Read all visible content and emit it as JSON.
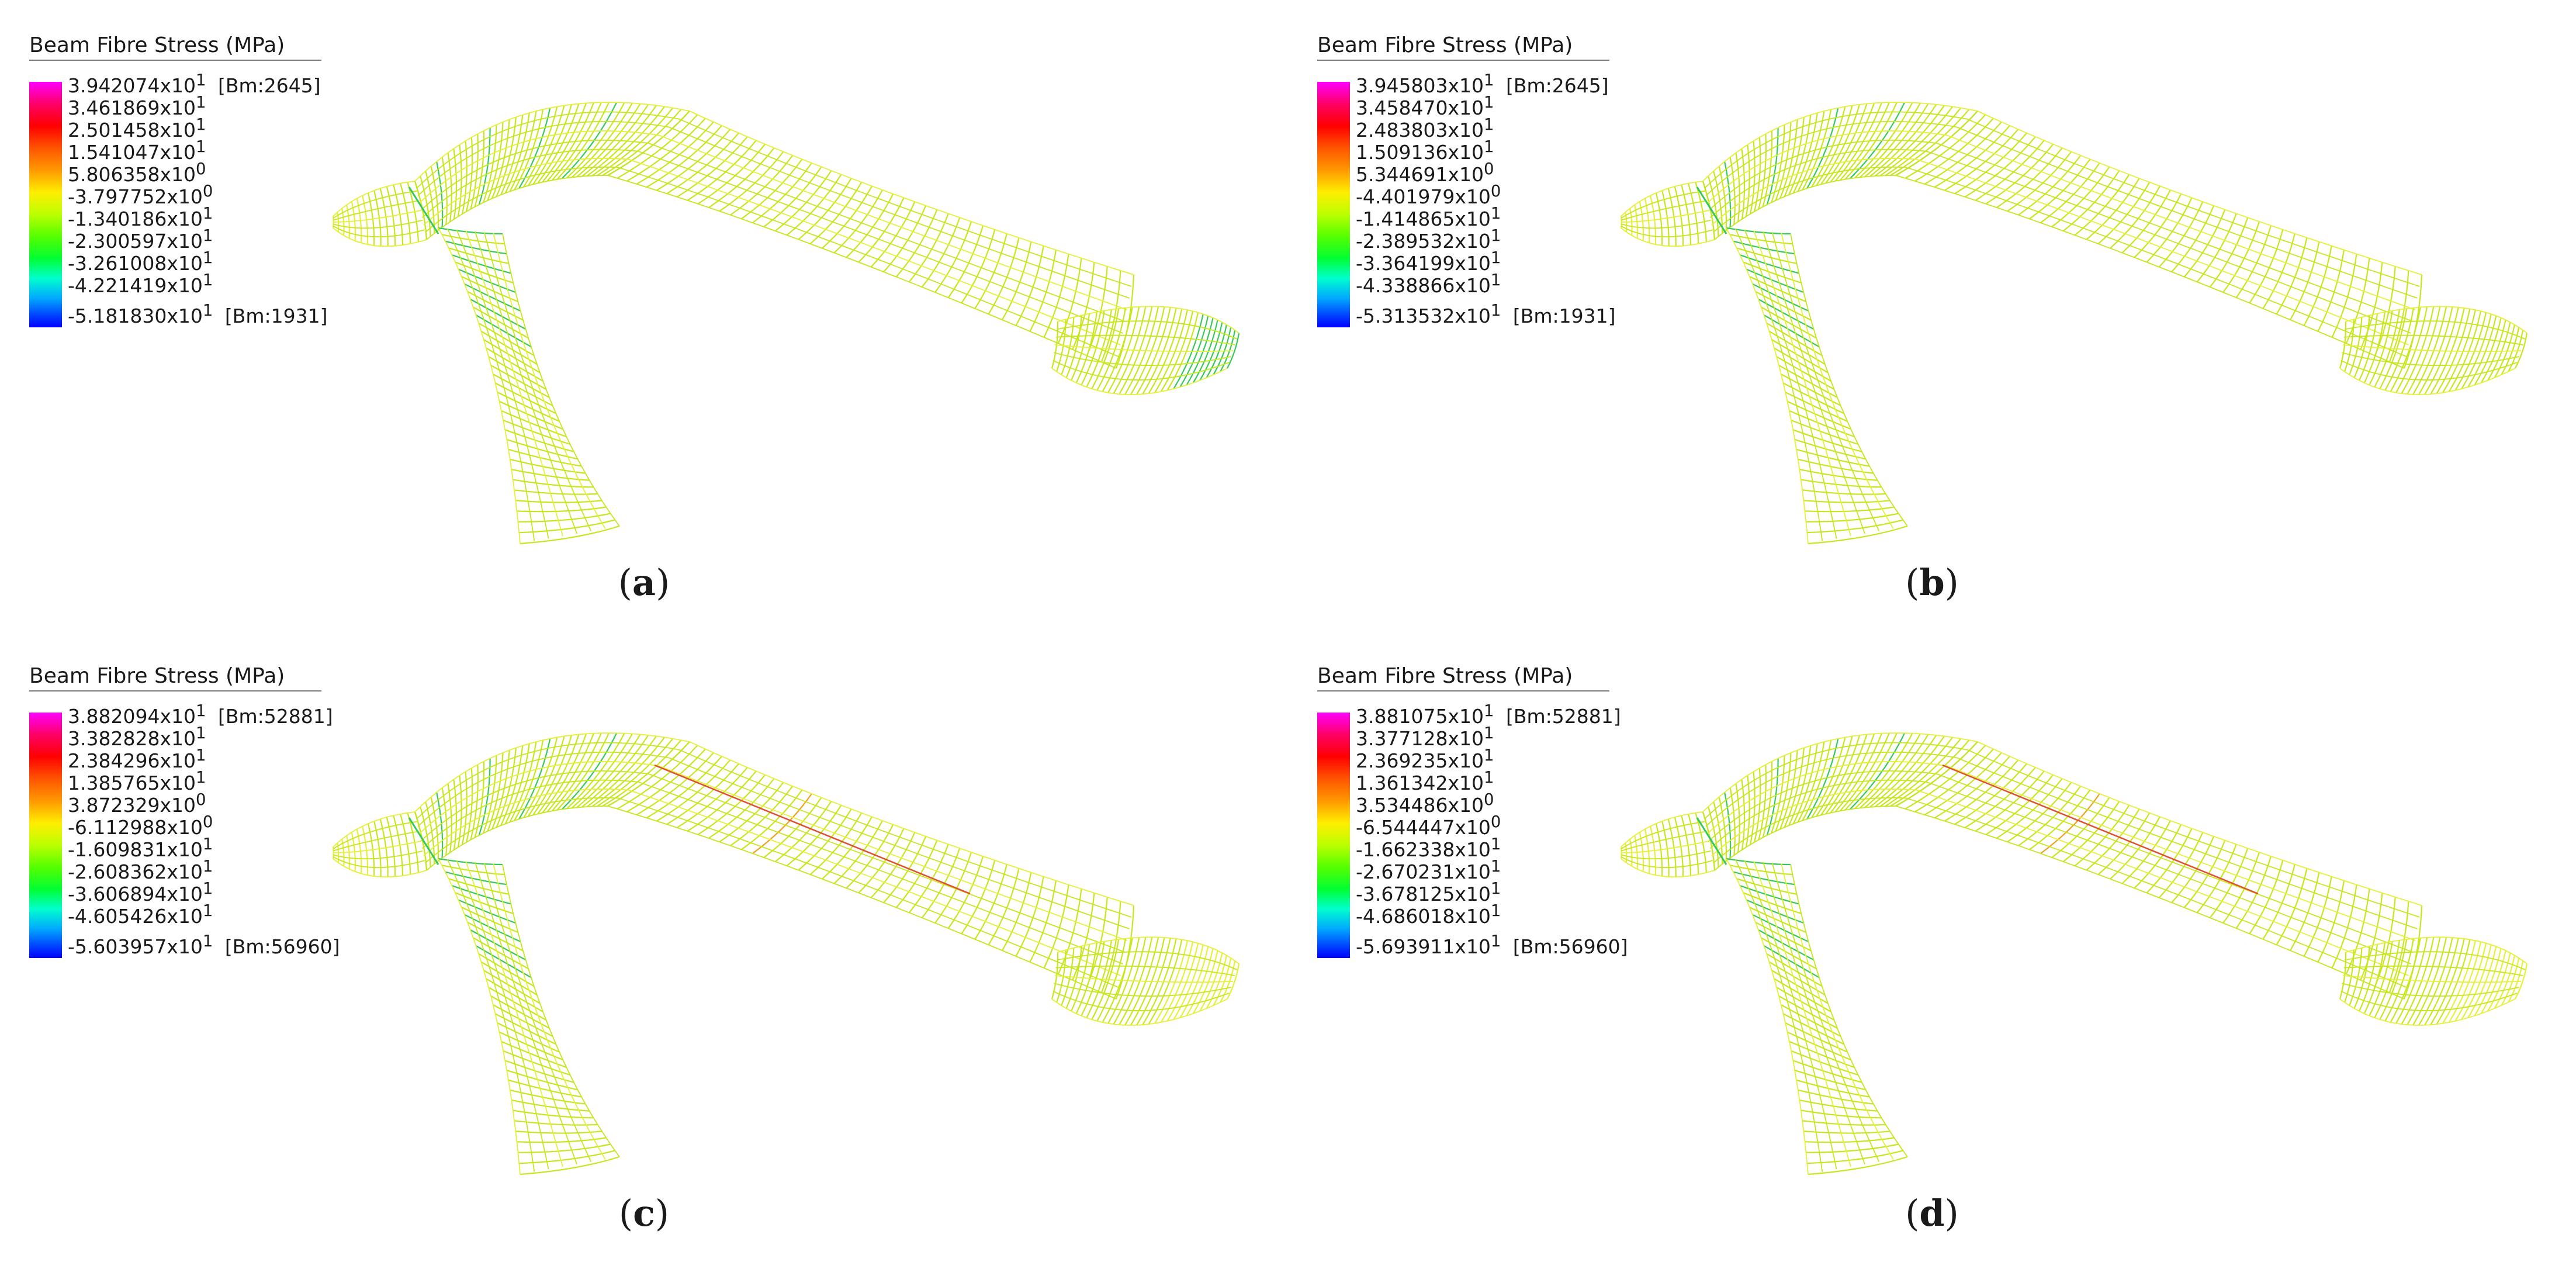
{
  "panels": [
    {
      "caption_letter": "a",
      "legend": {
        "title": "Beam Fibre Stress  (MPa)",
        "max_label": "3.942074x10",
        "max_exp": "1",
        "max_tag": "[Bm:2645]",
        "ticks": [
          {
            "m": "3.461869x10",
            "e": "1"
          },
          {
            "m": "2.501458x10",
            "e": "1"
          },
          {
            "m": "1.541047x10",
            "e": "1"
          },
          {
            "m": "5.806358x10",
            "e": "0"
          },
          {
            "m": "-3.797752x10",
            "e": "0"
          },
          {
            "m": "-1.340186x10",
            "e": "1"
          },
          {
            "m": "-2.300597x10",
            "e": "1"
          },
          {
            "m": "-3.261008x10",
            "e": "1"
          },
          {
            "m": "-4.221419x10",
            "e": "1"
          }
        ],
        "min_label": "-5.181830x10",
        "min_exp": "1",
        "min_tag": "[Bm:1931]"
      }
    },
    {
      "caption_letter": "b",
      "legend": {
        "title": "Beam Fibre Stress  (MPa)",
        "max_label": "3.945803x10",
        "max_exp": "1",
        "max_tag": "[Bm:2645]",
        "ticks": [
          {
            "m": "3.458470x10",
            "e": "1"
          },
          {
            "m": "2.483803x10",
            "e": "1"
          },
          {
            "m": "1.509136x10",
            "e": "1"
          },
          {
            "m": "5.344691x10",
            "e": "0"
          },
          {
            "m": "-4.401979x10",
            "e": "0"
          },
          {
            "m": "-1.414865x10",
            "e": "1"
          },
          {
            "m": "-2.389532x10",
            "e": "1"
          },
          {
            "m": "-3.364199x10",
            "e": "1"
          },
          {
            "m": "-4.338866x10",
            "e": "1"
          }
        ],
        "min_label": "-5.313532x10",
        "min_exp": "1",
        "min_tag": "[Bm:1931]"
      }
    },
    {
      "caption_letter": "c",
      "legend": {
        "title": "Beam Fibre Stress  (MPa)",
        "max_label": "3.882094x10",
        "max_exp": "1",
        "max_tag": "[Bm:52881]",
        "ticks": [
          {
            "m": "3.382828x10",
            "e": "1"
          },
          {
            "m": "2.384296x10",
            "e": "1"
          },
          {
            "m": "1.385765x10",
            "e": "1"
          },
          {
            "m": "3.872329x10",
            "e": "0"
          },
          {
            "m": "-6.112988x10",
            "e": "0"
          },
          {
            "m": "-1.609831x10",
            "e": "1"
          },
          {
            "m": "-2.608362x10",
            "e": "1"
          },
          {
            "m": "-3.606894x10",
            "e": "1"
          },
          {
            "m": "-4.605426x10",
            "e": "1"
          }
        ],
        "min_label": "-5.603957x10",
        "min_exp": "1",
        "min_tag": "[Bm:56960]"
      }
    },
    {
      "caption_letter": "d",
      "legend": {
        "title": "Beam Fibre Stress  (MPa)",
        "max_label": "3.881075x10",
        "max_exp": "1",
        "max_tag": "[Bm:52881]",
        "ticks": [
          {
            "m": "3.377128x10",
            "e": "1"
          },
          {
            "m": "2.369235x10",
            "e": "1"
          },
          {
            "m": "1.361342x10",
            "e": "1"
          },
          {
            "m": "3.534486x10",
            "e": "0"
          },
          {
            "m": "-6.544447x10",
            "e": "0"
          },
          {
            "m": "-1.662338x10",
            "e": "1"
          },
          {
            "m": "-2.670231x10",
            "e": "1"
          },
          {
            "m": "-3.678125x10",
            "e": "1"
          },
          {
            "m": "-4.686018x10",
            "e": "1"
          }
        ],
        "min_label": "-5.693911x10",
        "min_exp": "1",
        "min_tag": "[Bm:56960]"
      }
    }
  ],
  "colors": {
    "mesh_main": "#c8e61e",
    "mesh_light": "#e6f03a",
    "mesh_green": "#36c95a",
    "mesh_orange": "#f0a020",
    "mesh_red": "#e05030"
  }
}
